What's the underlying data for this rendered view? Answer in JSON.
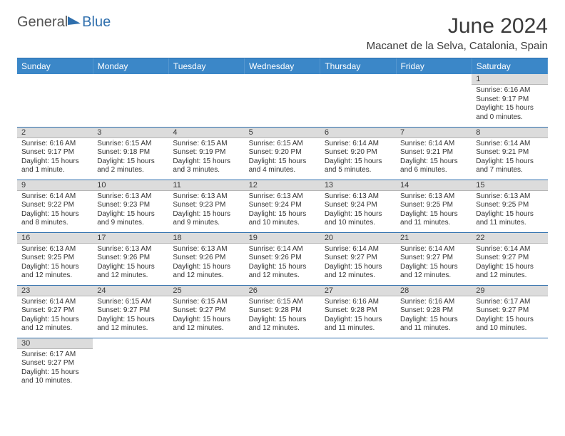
{
  "brand": {
    "general": "General",
    "blue": "Blue"
  },
  "title": "June 2024",
  "location": "Macanet de la Selva, Catalonia, Spain",
  "colors": {
    "header_bg": "#3b87c8",
    "accent": "#2f6fad",
    "daynum_bg": "#dcdcdc",
    "text": "#333333",
    "title_text": "#3a3a3a"
  },
  "fonts": {
    "title_size": 30,
    "location_size": 15,
    "dayhdr_size": 12,
    "body_size": 10
  },
  "calendar": {
    "type": "table",
    "columns": [
      "Sunday",
      "Monday",
      "Tuesday",
      "Wednesday",
      "Thursday",
      "Friday",
      "Saturday"
    ],
    "weeks": [
      [
        null,
        null,
        null,
        null,
        null,
        null,
        {
          "n": 1,
          "sr": "6:16 AM",
          "ss": "9:17 PM",
          "dl": "15 hours and 0 minutes."
        }
      ],
      [
        {
          "n": 2,
          "sr": "6:16 AM",
          "ss": "9:17 PM",
          "dl": "15 hours and 1 minute."
        },
        {
          "n": 3,
          "sr": "6:15 AM",
          "ss": "9:18 PM",
          "dl": "15 hours and 2 minutes."
        },
        {
          "n": 4,
          "sr": "6:15 AM",
          "ss": "9:19 PM",
          "dl": "15 hours and 3 minutes."
        },
        {
          "n": 5,
          "sr": "6:15 AM",
          "ss": "9:20 PM",
          "dl": "15 hours and 4 minutes."
        },
        {
          "n": 6,
          "sr": "6:14 AM",
          "ss": "9:20 PM",
          "dl": "15 hours and 5 minutes."
        },
        {
          "n": 7,
          "sr": "6:14 AM",
          "ss": "9:21 PM",
          "dl": "15 hours and 6 minutes."
        },
        {
          "n": 8,
          "sr": "6:14 AM",
          "ss": "9:21 PM",
          "dl": "15 hours and 7 minutes."
        }
      ],
      [
        {
          "n": 9,
          "sr": "6:14 AM",
          "ss": "9:22 PM",
          "dl": "15 hours and 8 minutes."
        },
        {
          "n": 10,
          "sr": "6:13 AM",
          "ss": "9:23 PM",
          "dl": "15 hours and 9 minutes."
        },
        {
          "n": 11,
          "sr": "6:13 AM",
          "ss": "9:23 PM",
          "dl": "15 hours and 9 minutes."
        },
        {
          "n": 12,
          "sr": "6:13 AM",
          "ss": "9:24 PM",
          "dl": "15 hours and 10 minutes."
        },
        {
          "n": 13,
          "sr": "6:13 AM",
          "ss": "9:24 PM",
          "dl": "15 hours and 10 minutes."
        },
        {
          "n": 14,
          "sr": "6:13 AM",
          "ss": "9:25 PM",
          "dl": "15 hours and 11 minutes."
        },
        {
          "n": 15,
          "sr": "6:13 AM",
          "ss": "9:25 PM",
          "dl": "15 hours and 11 minutes."
        }
      ],
      [
        {
          "n": 16,
          "sr": "6:13 AM",
          "ss": "9:25 PM",
          "dl": "15 hours and 12 minutes."
        },
        {
          "n": 17,
          "sr": "6:13 AM",
          "ss": "9:26 PM",
          "dl": "15 hours and 12 minutes."
        },
        {
          "n": 18,
          "sr": "6:13 AM",
          "ss": "9:26 PM",
          "dl": "15 hours and 12 minutes."
        },
        {
          "n": 19,
          "sr": "6:14 AM",
          "ss": "9:26 PM",
          "dl": "15 hours and 12 minutes."
        },
        {
          "n": 20,
          "sr": "6:14 AM",
          "ss": "9:27 PM",
          "dl": "15 hours and 12 minutes."
        },
        {
          "n": 21,
          "sr": "6:14 AM",
          "ss": "9:27 PM",
          "dl": "15 hours and 12 minutes."
        },
        {
          "n": 22,
          "sr": "6:14 AM",
          "ss": "9:27 PM",
          "dl": "15 hours and 12 minutes."
        }
      ],
      [
        {
          "n": 23,
          "sr": "6:14 AM",
          "ss": "9:27 PM",
          "dl": "15 hours and 12 minutes."
        },
        {
          "n": 24,
          "sr": "6:15 AM",
          "ss": "9:27 PM",
          "dl": "15 hours and 12 minutes."
        },
        {
          "n": 25,
          "sr": "6:15 AM",
          "ss": "9:27 PM",
          "dl": "15 hours and 12 minutes."
        },
        {
          "n": 26,
          "sr": "6:15 AM",
          "ss": "9:28 PM",
          "dl": "15 hours and 12 minutes."
        },
        {
          "n": 27,
          "sr": "6:16 AM",
          "ss": "9:28 PM",
          "dl": "15 hours and 11 minutes."
        },
        {
          "n": 28,
          "sr": "6:16 AM",
          "ss": "9:28 PM",
          "dl": "15 hours and 11 minutes."
        },
        {
          "n": 29,
          "sr": "6:17 AM",
          "ss": "9:27 PM",
          "dl": "15 hours and 10 minutes."
        }
      ],
      [
        {
          "n": 30,
          "sr": "6:17 AM",
          "ss": "9:27 PM",
          "dl": "15 hours and 10 minutes."
        },
        null,
        null,
        null,
        null,
        null,
        null
      ]
    ],
    "labels": {
      "sunrise": "Sunrise:",
      "sunset": "Sunset:",
      "daylight": "Daylight:"
    }
  }
}
